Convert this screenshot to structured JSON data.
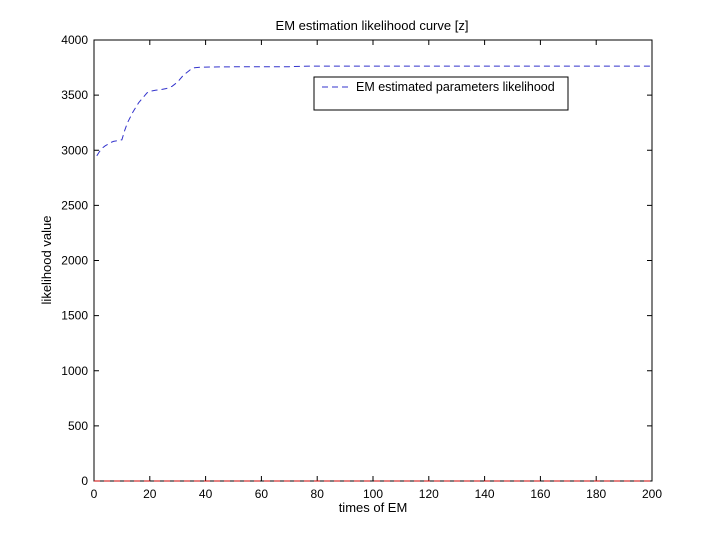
{
  "chart_data": {
    "type": "line",
    "title": "EM estimation likelihood curve [z]",
    "xlabel": "times of EM",
    "ylabel": "likelihood value",
    "xlim": [
      0,
      200
    ],
    "ylim": [
      0,
      4000
    ],
    "xticks": [
      0,
      20,
      40,
      60,
      80,
      100,
      120,
      140,
      160,
      180,
      200
    ],
    "yticks": [
      0,
      500,
      1000,
      1500,
      2000,
      2500,
      3000,
      3500,
      4000
    ],
    "grid": false,
    "legend_position": "top-right",
    "series": [
      {
        "name": "EM estimated parameters likelihood",
        "color": "#3333cc",
        "style": "dashed",
        "x": [
          1,
          2,
          3,
          4,
          5,
          6,
          7,
          8,
          9,
          10,
          11,
          12,
          13,
          14,
          15,
          16,
          17,
          18,
          19,
          20,
          22,
          24,
          26,
          28,
          30,
          32,
          34,
          35,
          36,
          38,
          40,
          45,
          50,
          60,
          70,
          75,
          80,
          100,
          120,
          140,
          160,
          180,
          200
        ],
        "y": [
          2950,
          2990,
          3020,
          3040,
          3055,
          3070,
          3080,
          3085,
          3090,
          3095,
          3180,
          3250,
          3300,
          3350,
          3390,
          3430,
          3460,
          3490,
          3520,
          3535,
          3545,
          3550,
          3560,
          3580,
          3620,
          3680,
          3720,
          3740,
          3748,
          3752,
          3754,
          3756,
          3757,
          3758,
          3758,
          3762,
          3763,
          3763,
          3763,
          3763,
          3763,
          3763,
          3763
        ]
      },
      {
        "color": "#cc0000",
        "style": "dashed",
        "x": [
          0,
          200
        ],
        "y": [
          0,
          0
        ]
      }
    ]
  }
}
